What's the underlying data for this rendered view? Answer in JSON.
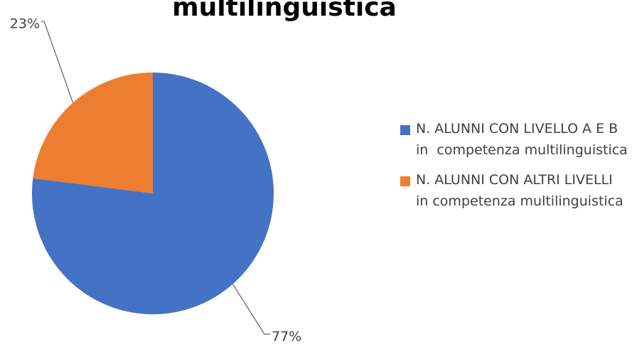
{
  "chart_data": {
    "type": "pie",
    "title": "multilinguistica",
    "categories": [
      "N. ALUNNI CON LIVELLO A E B in  competenza multilinguistica",
      "N. ALUNNI CON ALTRI LIVELLI in competenza multilinguistica"
    ],
    "values": [
      77,
      23
    ],
    "value_labels": [
      "77%",
      "23%"
    ],
    "colors": [
      "#4472c4",
      "#ed7d31"
    ],
    "legend": "right"
  }
}
